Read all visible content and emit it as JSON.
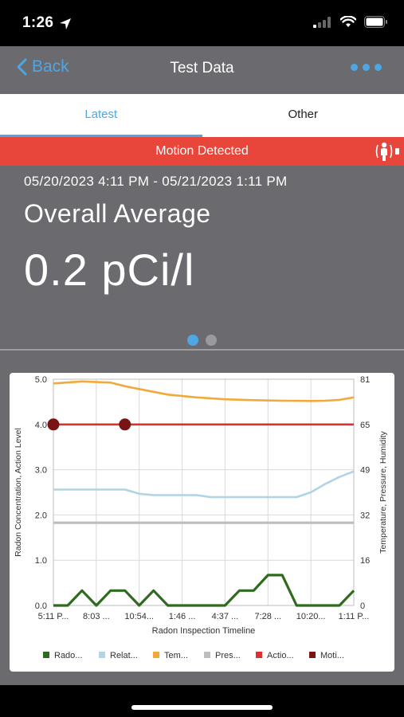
{
  "status_bar": {
    "time": "1:26"
  },
  "nav": {
    "back_label": "Back",
    "title": "Test Data"
  },
  "tabs": [
    {
      "label": "Latest",
      "active": true
    },
    {
      "label": "Other",
      "active": false
    }
  ],
  "banner": {
    "text": "Motion Detected"
  },
  "summary": {
    "date_range": "05/20/2023 4:11 PM - 05/21/2023 1:11 PM",
    "average_label": "Overall Average",
    "average_value": "0.2 pCi/l",
    "pager": {
      "pages": 2,
      "current": 1
    }
  },
  "colors": {
    "accent": "#4ea7e3",
    "banner": "#e8463a",
    "panel": "#6b6b6f",
    "radon": "#2f6b1e",
    "humidity": "#aed4e6",
    "temperature": "#f2a93b",
    "pressure": "#bdbdbd",
    "action": "#d8322a",
    "motion": "#7a1414"
  },
  "chart_data": {
    "type": "line",
    "xlabel": "Radon Inspection Timeline",
    "ylabel": "Radon Concentration, Action Level",
    "y2label": "Temperature, Pressure, Humidity",
    "ylim": [
      0,
      5
    ],
    "y2lim": [
      0,
      81
    ],
    "yticks": [
      "0.0",
      "1.0",
      "2.0",
      "3.0",
      "4.0",
      "5.0"
    ],
    "y2ticks": [
      "0",
      "16",
      "32",
      "49",
      "65",
      "81"
    ],
    "xticks": [
      "5:11 P...",
      "8:03 ...",
      "10:54...",
      "1:46 ...",
      "4:37 ...",
      "7:28 ...",
      "10:20...",
      "1:11 P..."
    ],
    "grid": true,
    "legend_position": "bottom",
    "legend": [
      {
        "label": "Rado...",
        "color": "#2f6b1e"
      },
      {
        "label": "Relat...",
        "color": "#aed4e6"
      },
      {
        "label": "Tem...",
        "color": "#f2a93b"
      },
      {
        "label": "Pres...",
        "color": "#bdbdbd"
      },
      {
        "label": "Actio...",
        "color": "#d8322a"
      },
      {
        "label": "Moti...",
        "color": "#7a1414"
      }
    ],
    "series": [
      {
        "name": "Rado...",
        "axis": "left",
        "color": "#2f6b1e",
        "x": [
          0,
          1,
          2,
          3,
          4,
          5,
          6,
          7,
          8,
          9,
          10,
          11,
          12,
          13,
          14,
          15,
          16,
          17,
          18,
          19,
          20,
          21
        ],
        "values": [
          0,
          0,
          0.33,
          0,
          0.33,
          0.33,
          0,
          0.33,
          0,
          0,
          0,
          0,
          0,
          0.33,
          0.33,
          0.67,
          0.67,
          0,
          0,
          0,
          0,
          0.33
        ]
      },
      {
        "name": "Relat...",
        "axis": "right",
        "color": "#aed4e6",
        "x": [
          0,
          3,
          5,
          6,
          7,
          10,
          11,
          17,
          18,
          19,
          20,
          21
        ],
        "values": [
          41.5,
          41.5,
          41.5,
          40,
          39.5,
          39.5,
          38.8,
          38.8,
          40.5,
          43.5,
          46,
          48
        ]
      },
      {
        "name": "Tem...",
        "axis": "right",
        "color": "#f2a93b",
        "x": [
          0,
          2,
          4,
          5,
          6,
          8,
          10,
          12,
          14,
          16,
          18,
          19,
          20,
          21
        ],
        "values": [
          79.5,
          80.2,
          79.8,
          78.5,
          77.5,
          75.5,
          74.5,
          73.8,
          73.5,
          73.3,
          73.2,
          73.3,
          73.6,
          74.5
        ]
      },
      {
        "name": "Pres...",
        "axis": "right",
        "color": "#bdbdbd",
        "x": [
          0,
          21
        ],
        "values": [
          29.6,
          29.6
        ]
      },
      {
        "name": "Actio...",
        "axis": "left",
        "color": "#d8322a",
        "x": [
          0,
          21
        ],
        "values": [
          4.0,
          4.0
        ]
      },
      {
        "name": "Moti...",
        "axis": "left",
        "color": "#7a1414",
        "markers_only": true,
        "x": [
          0,
          5
        ],
        "values": [
          4.0,
          4.0
        ]
      }
    ]
  }
}
